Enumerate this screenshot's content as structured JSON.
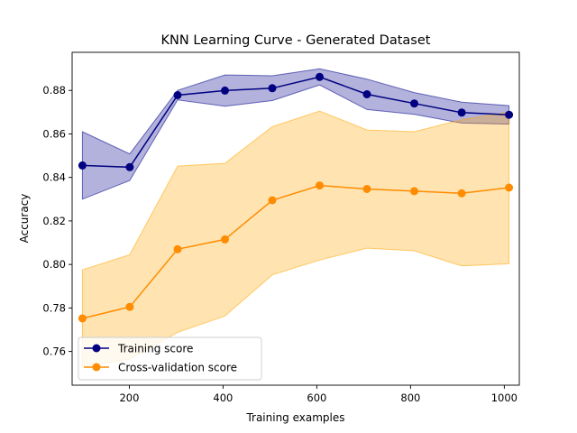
{
  "chart_data": {
    "type": "line",
    "title": "KNN Learning Curve - Generated Dataset",
    "xlabel": "Training examples",
    "ylabel": "Accuracy",
    "xlim": [
      78,
      1032
    ],
    "ylim": [
      0.7445,
      0.8975
    ],
    "xticks": [
      200,
      400,
      600,
      800,
      1000
    ],
    "xtick_labels": [
      "200",
      "400",
      "600",
      "800",
      "1000"
    ],
    "yticks": [
      0.76,
      0.78,
      0.8,
      0.82,
      0.84,
      0.86,
      0.88
    ],
    "ytick_labels": [
      "0.76",
      "0.78",
      "0.80",
      "0.82",
      "0.84",
      "0.86",
      "0.88"
    ],
    "grid": false,
    "legend_position": "lower-left",
    "x": [
      100,
      201,
      303,
      404,
      505,
      606,
      707,
      808,
      909,
      1010
    ],
    "series": [
      {
        "name": "Training score",
        "color": "#000080",
        "band_color": "#00008b",
        "values": [
          0.8455,
          0.8447,
          0.8778,
          0.8799,
          0.881,
          0.8862,
          0.8782,
          0.874,
          0.8698,
          0.8688
        ],
        "upper": [
          0.861,
          0.8508,
          0.88,
          0.8871,
          0.8867,
          0.8899,
          0.8852,
          0.879,
          0.8746,
          0.873
        ],
        "lower": [
          0.83,
          0.8386,
          0.8756,
          0.8727,
          0.8753,
          0.8825,
          0.8712,
          0.869,
          0.865,
          0.8645
        ]
      },
      {
        "name": "Cross-validation score",
        "color": "#ff8c00",
        "band_color": "#ffa500",
        "values": [
          0.7752,
          0.7805,
          0.807,
          0.8115,
          0.8295,
          0.8363,
          0.8347,
          0.8337,
          0.8327,
          0.8353
        ],
        "upper": [
          0.7975,
          0.8045,
          0.8452,
          0.8465,
          0.8633,
          0.8705,
          0.8618,
          0.861,
          0.8665,
          0.87
        ],
        "lower": [
          0.753,
          0.7565,
          0.7688,
          0.7763,
          0.7952,
          0.802,
          0.8075,
          0.8063,
          0.7993,
          0.8003
        ]
      }
    ]
  }
}
